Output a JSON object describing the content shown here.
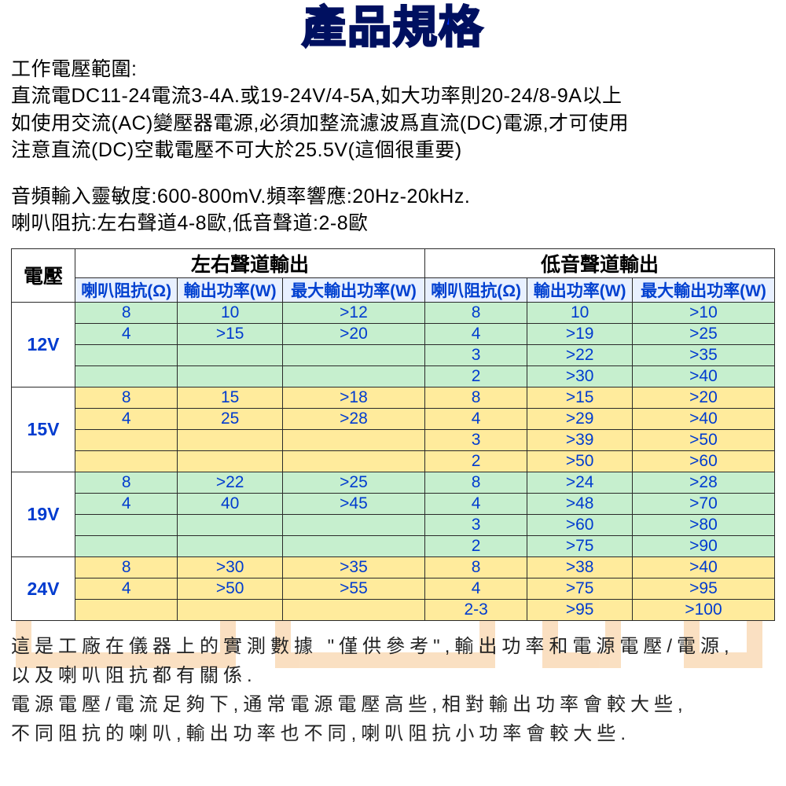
{
  "title": "產品規格",
  "intro": {
    "l1": "工作電壓範圍:",
    "l2": "直流電DC11-24電流3-4A.或19-24V/4-5A,如大功率則20-24/8-9A以上",
    "l3": "如使用交流(AC)變壓器電源,必須加整流濾波爲直流(DC)電源,才可使用",
    "l4": "注意直流(DC)空載電壓不可大於25.5V(這個很重要)",
    "l5": "音頻輸入靈敏度:600-800mV.頻率響應:20Hz-20kHz.",
    "l6": "喇叭阻抗:左右聲道4-8歐,低音聲道:2-8歐"
  },
  "table": {
    "voltage_header": "電壓",
    "group_left": "左右聲道輸出",
    "group_right": "低音聲道輸出",
    "sub": {
      "imp": "喇叭阻抗(Ω)",
      "pow": "輸出功率(W)",
      "max": "最大輸出功率(W)"
    },
    "groups": [
      {
        "voltage": "12V",
        "band": "g",
        "rows": [
          {
            "limp": "8",
            "lpow": "10",
            "lmax": ">12",
            "rimp": "8",
            "rpow": "10",
            "rmax": ">10"
          },
          {
            "limp": "4",
            "lpow": ">15",
            "lmax": ">20",
            "rimp": "4",
            "rpow": ">19",
            "rmax": ">25"
          },
          {
            "limp": "",
            "lpow": "",
            "lmax": "",
            "rimp": "3",
            "rpow": ">22",
            "rmax": ">35"
          },
          {
            "limp": "",
            "lpow": "",
            "lmax": "",
            "rimp": "2",
            "rpow": ">30",
            "rmax": ">40"
          }
        ]
      },
      {
        "voltage": "15V",
        "band": "y",
        "rows": [
          {
            "limp": "8",
            "lpow": "15",
            "lmax": ">18",
            "rimp": "8",
            "rpow": ">15",
            "rmax": ">20"
          },
          {
            "limp": "4",
            "lpow": "25",
            "lmax": ">28",
            "rimp": "4",
            "rpow": ">29",
            "rmax": ">40"
          },
          {
            "limp": "",
            "lpow": "",
            "lmax": "",
            "rimp": "3",
            "rpow": ">39",
            "rmax": ">50"
          },
          {
            "limp": "",
            "lpow": "",
            "lmax": "",
            "rimp": "2",
            "rpow": ">50",
            "rmax": ">60"
          }
        ]
      },
      {
        "voltage": "19V",
        "band": "g",
        "rows": [
          {
            "limp": "8",
            "lpow": ">22",
            "lmax": ">25",
            "rimp": "8",
            "rpow": ">24",
            "rmax": ">28"
          },
          {
            "limp": "4",
            "lpow": "40",
            "lmax": ">45",
            "rimp": "4",
            "rpow": ">48",
            "rmax": ">70"
          },
          {
            "limp": "",
            "lpow": "",
            "lmax": "",
            "rimp": "3",
            "rpow": ">60",
            "rmax": ">80"
          },
          {
            "limp": "",
            "lpow": "",
            "lmax": "",
            "rimp": "2",
            "rpow": ">75",
            "rmax": ">90"
          }
        ]
      },
      {
        "voltage": "24V",
        "band": "y",
        "rows": [
          {
            "limp": "8",
            "lpow": ">30",
            "lmax": ">35",
            "rimp": "8",
            "rpow": ">38",
            "rmax": ">40"
          },
          {
            "limp": "4",
            "lpow": ">50",
            "lmax": ">55",
            "rimp": "4",
            "rpow": ">75",
            "rmax": ">95"
          },
          {
            "limp": "",
            "lpow": "",
            "lmax": "",
            "rimp": "2-3",
            "rpow": ">95",
            "rmax": ">100"
          }
        ]
      }
    ],
    "colors": {
      "g": "#c6efce",
      "y": "#ffeb9c",
      "sub_bg": "#e8f0ff",
      "cell_text": "#003bcf",
      "border": "#2a2a2a"
    }
  },
  "notes": {
    "l1": "這是工廠在儀器上的實測數據 \"僅供參考\",輸出功率和電源電壓/電源,",
    "l2": "以及喇叭阻抗都有關係.",
    "l3": "電源電壓/電流足夠下,通常電源電壓高些,相對輸出功率會較大些,",
    "l4": "不同阻抗的喇叭,輸出功率也不同,喇叭阻抗小功率會較大些."
  },
  "watermark": {
    "stroke": "#f2a650",
    "opacity": 0.35
  }
}
